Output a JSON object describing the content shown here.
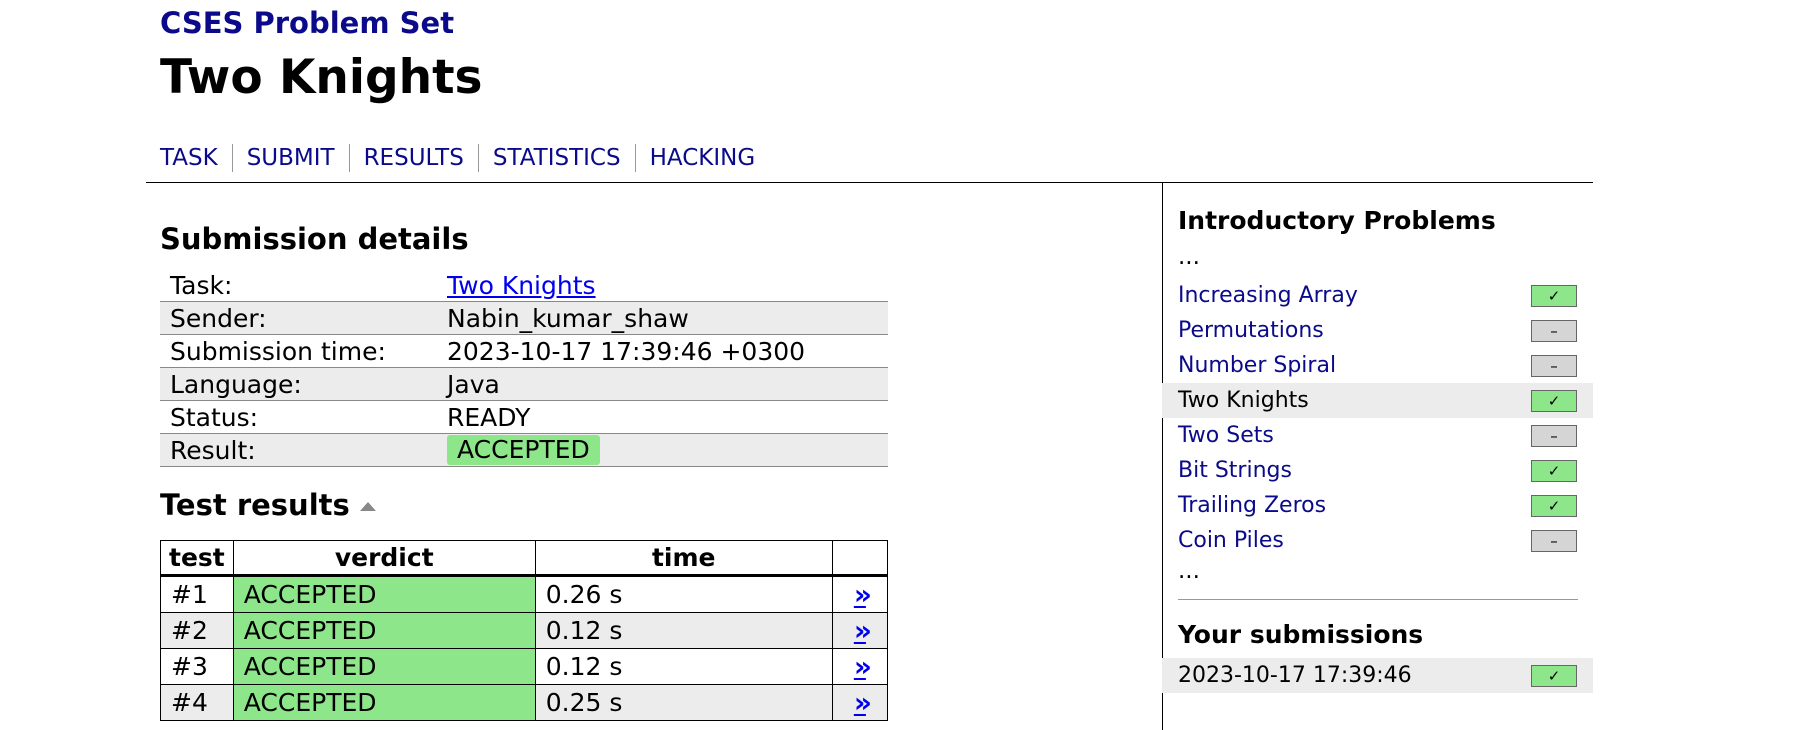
{
  "header": {
    "site_title": "CSES Problem Set",
    "problem_title": "Two Knights",
    "nav": [
      "TASK",
      "SUBMIT",
      "RESULTS",
      "STATISTICS",
      "HACKING"
    ]
  },
  "details": {
    "heading": "Submission details",
    "rows": [
      {
        "label": "Task:",
        "value": "Two Knights"
      },
      {
        "label": "Sender:",
        "value": "Nabin_kumar_shaw"
      },
      {
        "label": "Submission time:",
        "value": "2023-10-17 17:39:46 +0300"
      },
      {
        "label": "Language:",
        "value": "Java"
      },
      {
        "label": "Status:",
        "value": "READY"
      },
      {
        "label": "Result:",
        "value": "ACCEPTED"
      }
    ]
  },
  "tests": {
    "heading": "Test results",
    "columns": [
      "test",
      "verdict",
      "time",
      ""
    ],
    "rows": [
      {
        "test": "#1",
        "verdict": "ACCEPTED",
        "time": "0.26 s",
        "link": "»"
      },
      {
        "test": "#2",
        "verdict": "ACCEPTED",
        "time": "0.12 s",
        "link": "»"
      },
      {
        "test": "#3",
        "verdict": "ACCEPTED",
        "time": "0.12 s",
        "link": "»"
      },
      {
        "test": "#4",
        "verdict": "ACCEPTED",
        "time": "0.25 s",
        "link": "»"
      }
    ]
  },
  "sidebar": {
    "section_title": "Introductory Problems",
    "ellipsis_top": "...",
    "ellipsis_bottom": "...",
    "problems": [
      {
        "name": "Increasing Array",
        "status": "solved",
        "mark": "✓"
      },
      {
        "name": "Permutations",
        "status": "unsolved",
        "mark": "–"
      },
      {
        "name": "Number Spiral",
        "status": "unsolved",
        "mark": "–"
      },
      {
        "name": "Two Knights",
        "status": "solved",
        "mark": "✓",
        "current": true
      },
      {
        "name": "Two Sets",
        "status": "unsolved",
        "mark": "–"
      },
      {
        "name": "Bit Strings",
        "status": "solved",
        "mark": "✓"
      },
      {
        "name": "Trailing Zeros",
        "status": "solved",
        "mark": "✓"
      },
      {
        "name": "Coin Piles",
        "status": "unsolved",
        "mark": "–"
      }
    ],
    "submissions_title": "Your submissions",
    "submissions": [
      {
        "time": "2023-10-17 17:39:46",
        "status": "solved",
        "mark": "✓"
      }
    ]
  },
  "colors": {
    "link": "#0a0a8a",
    "accepted": "#8ee68a",
    "unsolved": "#d5d5d5",
    "row_alt": "#ececec"
  }
}
